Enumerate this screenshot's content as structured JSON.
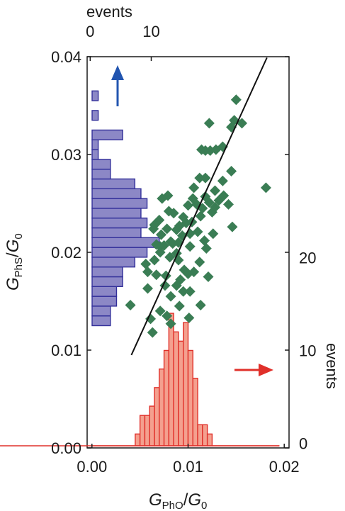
{
  "chart_data": {
    "type": "scatter",
    "xlabel": {
      "main": "G",
      "sub": "PhO",
      "slash": "/",
      "main2": "G",
      "sub2": "0"
    },
    "ylabel": {
      "main": "G",
      "sub": "PhS",
      "slash": "/",
      "main2": "G",
      "sub2": "0"
    },
    "top_axis_label": "events",
    "right_axis_label": "events",
    "xlim": [
      -0.0005,
      0.0205
    ],
    "ylim": [
      0.0,
      0.04
    ],
    "x_ticks": [
      "0.00",
      "0.01",
      "0.02"
    ],
    "x_tick_values": [
      0.0,
      0.01,
      0.02
    ],
    "y_ticks": [
      "0.00",
      "0.01",
      "0.02",
      "0.03",
      "0.04"
    ],
    "y_tick_values": [
      0.0,
      0.01,
      0.02,
      0.03,
      0.04
    ],
    "top_ticks": [
      "0",
      "10"
    ],
    "top_tick_values": [
      0,
      10
    ],
    "right_ticks": [
      "0",
      "10",
      "20"
    ],
    "right_tick_values": [
      0,
      10,
      20
    ],
    "top_events_range": [
      -0.5,
      20
    ],
    "right_events_range": [
      -0.5,
      29
    ],
    "colors": {
      "scatter": "#3a7d54",
      "hist_y": "#8c88c6",
      "hist_y_edge": "#33309a",
      "hist_x": "#f4a08f",
      "hist_x_edge": "#e0302a",
      "fit": "#111111",
      "arrow_blue": "#2255b0",
      "arrow_red": "#e0302a"
    },
    "series": [
      {
        "kind": "scatter",
        "points": [
          [
            0.004,
            0.0146
          ],
          [
            0.0058,
            0.0163
          ],
          [
            0.0058,
            0.018
          ],
          [
            0.0065,
            0.0192
          ],
          [
            0.0071,
            0.02
          ],
          [
            0.0056,
            0.0188
          ],
          [
            0.0067,
            0.0177
          ],
          [
            0.0081,
            0.0195
          ],
          [
            0.0088,
            0.0199
          ],
          [
            0.009,
            0.021
          ],
          [
            0.0071,
            0.0206
          ],
          [
            0.0082,
            0.0211
          ],
          [
            0.0102,
            0.0206
          ],
          [
            0.007,
            0.0233
          ],
          [
            0.008,
            0.0242
          ],
          [
            0.0085,
            0.024
          ],
          [
            0.0073,
            0.0255
          ],
          [
            0.0079,
            0.0258
          ],
          [
            0.0065,
            0.0228
          ],
          [
            0.0072,
            0.0218
          ],
          [
            0.0088,
            0.0223
          ],
          [
            0.0091,
            0.0227
          ],
          [
            0.0078,
            0.0224
          ],
          [
            0.0095,
            0.0236
          ],
          [
            0.0098,
            0.023
          ],
          [
            0.0102,
            0.0219
          ],
          [
            0.0094,
            0.0217
          ],
          [
            0.011,
            0.0221
          ],
          [
            0.0104,
            0.0231
          ],
          [
            0.0113,
            0.0237
          ],
          [
            0.0105,
            0.0255
          ],
          [
            0.0109,
            0.0249
          ],
          [
            0.0115,
            0.0245
          ],
          [
            0.0118,
            0.0257
          ],
          [
            0.0122,
            0.0251
          ],
          [
            0.0125,
            0.0241
          ],
          [
            0.0128,
            0.0246
          ],
          [
            0.0106,
            0.0266
          ],
          [
            0.0112,
            0.0276
          ],
          [
            0.0118,
            0.0276
          ],
          [
            0.0132,
            0.0253
          ],
          [
            0.0137,
            0.0258
          ],
          [
            0.0128,
            0.0263
          ],
          [
            0.0142,
            0.0249
          ],
          [
            0.0146,
            0.0226
          ],
          [
            0.0136,
            0.0273
          ],
          [
            0.0145,
            0.0283
          ],
          [
            0.0114,
            0.0305
          ],
          [
            0.0118,
            0.0304
          ],
          [
            0.0123,
            0.0304
          ],
          [
            0.0129,
            0.0305
          ],
          [
            0.0136,
            0.0308
          ],
          [
            0.0122,
            0.0332
          ],
          [
            0.0145,
            0.0328
          ],
          [
            0.0148,
            0.0335
          ],
          [
            0.0156,
            0.0332
          ],
          [
            0.015,
            0.0356
          ],
          [
            0.0181,
            0.0266
          ],
          [
            0.0096,
            0.0182
          ],
          [
            0.009,
            0.0192
          ],
          [
            0.01,
            0.0178
          ],
          [
            0.0092,
            0.0172
          ],
          [
            0.0106,
            0.018
          ],
          [
            0.0112,
            0.019
          ],
          [
            0.0102,
            0.016
          ],
          [
            0.0095,
            0.016
          ],
          [
            0.0088,
            0.0166
          ],
          [
            0.0077,
            0.0176
          ],
          [
            0.0076,
            0.0166
          ],
          [
            0.0082,
            0.0155
          ],
          [
            0.0091,
            0.0145
          ],
          [
            0.0071,
            0.014
          ],
          [
            0.0078,
            0.0135
          ],
          [
            0.0082,
            0.0127
          ],
          [
            0.0061,
            0.0132
          ],
          [
            0.0063,
            0.0118
          ],
          [
            0.0101,
            0.0133
          ],
          [
            0.0113,
            0.0146
          ],
          [
            0.0121,
            0.0175
          ],
          [
            0.0119,
            0.0204
          ],
          [
            0.0126,
            0.0219
          ],
          [
            0.0117,
            0.0212
          ],
          [
            0.0084,
            0.0209
          ],
          [
            0.0075,
            0.0207
          ],
          [
            0.0067,
            0.0208
          ],
          [
            0.0064,
            0.0224
          ],
          [
            0.01,
            0.0248
          ]
        ]
      },
      {
        "kind": "fit-line",
        "points": [
          [
            0.0041,
            0.0095
          ],
          [
            0.0182,
            0.0399
          ]
        ]
      },
      {
        "kind": "histogram-y",
        "bin_edges": [
          0.0125,
          0.0135,
          0.0145,
          0.0155,
          0.0165,
          0.0175,
          0.0185,
          0.0195,
          0.0205,
          0.0215,
          0.0225,
          0.0235,
          0.0245,
          0.0255,
          0.0265,
          0.0275,
          0.0285,
          0.0295,
          0.0305,
          0.0315,
          0.0325,
          0.0335,
          0.0345,
          0.0355,
          0.0365
        ],
        "counts": [
          3,
          3,
          4,
          4,
          5,
          5,
          7,
          9,
          11,
          8,
          9,
          8,
          9,
          8,
          7,
          3,
          3,
          1,
          1,
          5,
          0,
          1,
          0,
          1
        ]
      },
      {
        "kind": "histogram-x",
        "bin_edges": [
          0.0,
          0.0005,
          0.001,
          0.0015,
          0.002,
          0.0025,
          0.003,
          0.0035,
          0.004,
          0.0045,
          0.005,
          0.0055,
          0.006,
          0.0065,
          0.007,
          0.0075,
          0.008,
          0.0085,
          0.009,
          0.0095,
          0.01,
          0.0105,
          0.011,
          0.0115,
          0.012,
          0.0125,
          0.013,
          0.0135,
          0.014,
          0.0145,
          0.015,
          0.0155,
          0.016,
          0.0165,
          0.017,
          0.0175,
          0.018,
          0.0185,
          0.019,
          0.0195
        ],
        "counts": [
          0,
          0,
          0,
          0,
          0,
          0,
          0,
          0,
          0,
          1,
          3,
          3,
          4,
          6,
          8,
          10,
          14,
          12,
          11,
          13,
          10,
          7,
          2,
          2,
          1,
          0,
          0,
          0,
          0,
          0,
          0,
          0,
          0,
          0,
          0,
          0,
          0,
          0,
          0,
          0
        ]
      }
    ]
  }
}
